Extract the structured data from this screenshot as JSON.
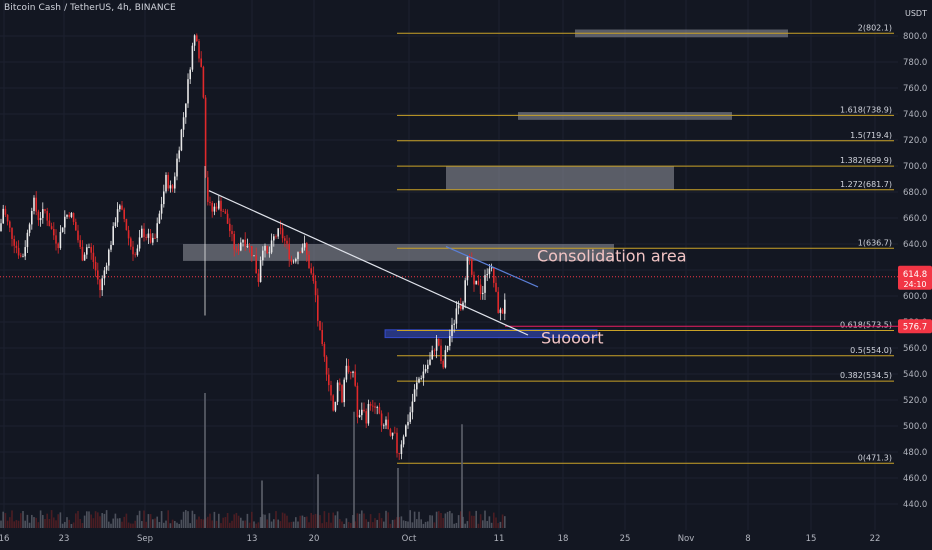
{
  "header": {
    "symbol_line": "Bitcoin Cash / TetherUS, 4h, BINANCE"
  },
  "axis": {
    "currency": "USDT"
  },
  "chart_data": {
    "type": "candlestick",
    "title": "Bitcoin Cash / TetherUS, 4h, BINANCE",
    "x_tick_labels": [
      "16",
      "23",
      "Sep",
      "13",
      "20",
      "Oct",
      "11",
      "18",
      "25",
      "Nov",
      "8",
      "15",
      "22"
    ],
    "y_ticks": [
      440,
      460,
      480,
      500,
      520,
      540,
      560,
      580,
      600,
      620,
      640,
      660,
      680,
      700,
      720,
      740,
      760,
      780,
      800
    ],
    "ylim": [
      430,
      820
    ],
    "fib_levels": [
      {
        "label": "2(802.1)",
        "value": 802.1
      },
      {
        "label": "1.618(738.9)",
        "value": 738.9
      },
      {
        "label": "1.5(719.4)",
        "value": 719.4
      },
      {
        "label": "1.382(699.9)",
        "value": 699.9
      },
      {
        "label": "1.272(681.7)",
        "value": 681.7
      },
      {
        "label": "1(636.7)",
        "value": 636.7
      },
      {
        "label": "0.618(573.5)",
        "value": 573.5
      },
      {
        "label": "0.5(554.0)",
        "value": 554.0
      },
      {
        "label": "0.382(534.5)",
        "value": 534.5
      },
      {
        "label": "0(471.3)",
        "value": 471.3
      }
    ],
    "zones": [
      {
        "name": "target-zone-top",
        "low": 799,
        "high": 805
      },
      {
        "name": "target-zone-mid",
        "low": 735.5,
        "high": 741.5
      },
      {
        "name": "target-zone-low",
        "low": 681.7,
        "high": 699.9
      },
      {
        "name": "consolidation-zone",
        "low": 627,
        "high": 640
      }
    ],
    "support_zone": {
      "low": 568,
      "high": 574
    },
    "annotations": [
      {
        "text": "Consolidation area",
        "price": 628
      },
      {
        "text": "Suooort",
        "price": 565
      }
    ],
    "price_badges": [
      {
        "value": "614.8",
        "sub": "24:10",
        "color": "#f23645"
      },
      {
        "value": "576.7",
        "color": "#f23645"
      }
    ],
    "price_path": [
      {
        "t": 0,
        "p": 650
      },
      {
        "t": 3,
        "p": 668
      },
      {
        "t": 8,
        "p": 655
      },
      {
        "t": 15,
        "p": 640
      },
      {
        "t": 22,
        "p": 628
      },
      {
        "t": 28,
        "p": 650
      },
      {
        "t": 33,
        "p": 675
      },
      {
        "t": 38,
        "p": 660
      },
      {
        "t": 45,
        "p": 665
      },
      {
        "t": 52,
        "p": 650
      },
      {
        "t": 58,
        "p": 640
      },
      {
        "t": 64,
        "p": 660
      },
      {
        "t": 70,
        "p": 665
      },
      {
        "t": 76,
        "p": 650
      },
      {
        "t": 82,
        "p": 630
      },
      {
        "t": 88,
        "p": 640
      },
      {
        "t": 94,
        "p": 625
      },
      {
        "t": 100,
        "p": 605
      },
      {
        "t": 106,
        "p": 625
      },
      {
        "t": 112,
        "p": 645
      },
      {
        "t": 118,
        "p": 670
      },
      {
        "t": 124,
        "p": 660
      },
      {
        "t": 130,
        "p": 640
      },
      {
        "t": 136,
        "p": 630
      },
      {
        "t": 142,
        "p": 650
      },
      {
        "t": 148,
        "p": 645
      },
      {
        "t": 154,
        "p": 640
      },
      {
        "t": 160,
        "p": 665
      },
      {
        "t": 166,
        "p": 690
      },
      {
        "t": 172,
        "p": 680
      },
      {
        "t": 178,
        "p": 710
      },
      {
        "t": 184,
        "p": 740
      },
      {
        "t": 189,
        "p": 770
      },
      {
        "t": 192,
        "p": 790
      },
      {
        "t": 196,
        "p": 805
      },
      {
        "t": 200,
        "p": 780
      },
      {
        "t": 203,
        "p": 770
      },
      {
        "t": 205,
        "p": 700
      },
      {
        "t": 208,
        "p": 672
      },
      {
        "t": 212,
        "p": 665
      },
      {
        "t": 218,
        "p": 672
      },
      {
        "t": 224,
        "p": 665
      },
      {
        "t": 230,
        "p": 650
      },
      {
        "t": 236,
        "p": 632
      },
      {
        "t": 242,
        "p": 645
      },
      {
        "t": 248,
        "p": 640
      },
      {
        "t": 254,
        "p": 630
      },
      {
        "t": 258,
        "p": 610
      },
      {
        "t": 262,
        "p": 640
      },
      {
        "t": 268,
        "p": 630
      },
      {
        "t": 274,
        "p": 645
      },
      {
        "t": 280,
        "p": 650
      },
      {
        "t": 286,
        "p": 640
      },
      {
        "t": 292,
        "p": 625
      },
      {
        "t": 298,
        "p": 635
      },
      {
        "t": 304,
        "p": 640
      },
      {
        "t": 310,
        "p": 620
      },
      {
        "t": 315,
        "p": 605
      },
      {
        "t": 318,
        "p": 580
      },
      {
        "t": 322,
        "p": 560
      },
      {
        "t": 326,
        "p": 545
      },
      {
        "t": 330,
        "p": 530
      },
      {
        "t": 334,
        "p": 505
      },
      {
        "t": 338,
        "p": 540
      },
      {
        "t": 342,
        "p": 520
      },
      {
        "t": 346,
        "p": 550
      },
      {
        "t": 350,
        "p": 535
      },
      {
        "t": 354,
        "p": 545
      },
      {
        "t": 358,
        "p": 500
      },
      {
        "t": 362,
        "p": 515
      },
      {
        "t": 366,
        "p": 505
      },
      {
        "t": 370,
        "p": 520
      },
      {
        "t": 374,
        "p": 510
      },
      {
        "t": 378,
        "p": 515
      },
      {
        "t": 382,
        "p": 495
      },
      {
        "t": 386,
        "p": 505
      },
      {
        "t": 390,
        "p": 488
      },
      {
        "t": 394,
        "p": 495
      },
      {
        "t": 398,
        "p": 476
      },
      {
        "t": 402,
        "p": 490
      },
      {
        "t": 406,
        "p": 500
      },
      {
        "t": 410,
        "p": 510
      },
      {
        "t": 414,
        "p": 525
      },
      {
        "t": 418,
        "p": 535
      },
      {
        "t": 422,
        "p": 540
      },
      {
        "t": 426,
        "p": 545
      },
      {
        "t": 430,
        "p": 550
      },
      {
        "t": 434,
        "p": 560
      },
      {
        "t": 438,
        "p": 568
      },
      {
        "t": 442,
        "p": 540
      },
      {
        "t": 446,
        "p": 558
      },
      {
        "t": 450,
        "p": 570
      },
      {
        "t": 454,
        "p": 580
      },
      {
        "t": 458,
        "p": 598
      },
      {
        "t": 462,
        "p": 590
      },
      {
        "t": 465,
        "p": 615
      },
      {
        "t": 468,
        "p": 630
      },
      {
        "t": 471,
        "p": 620
      },
      {
        "t": 474,
        "p": 605
      },
      {
        "t": 478,
        "p": 612
      },
      {
        "t": 482,
        "p": 600
      },
      {
        "t": 486,
        "p": 618
      },
      {
        "t": 490,
        "p": 625
      },
      {
        "t": 494,
        "p": 610
      },
      {
        "t": 498,
        "p": 590
      },
      {
        "t": 502,
        "p": 585
      },
      {
        "t": 505,
        "p": 600
      },
      {
        "t": 507,
        "p": 614.8
      }
    ],
    "volume_spikes": [
      {
        "t": 205,
        "v": 1.0
      },
      {
        "t": 262,
        "v": 0.3
      },
      {
        "t": 318,
        "v": 0.35
      },
      {
        "t": 354,
        "v": 0.85
      },
      {
        "t": 398,
        "v": 0.4
      },
      {
        "t": 462,
        "v": 0.75
      }
    ]
  }
}
